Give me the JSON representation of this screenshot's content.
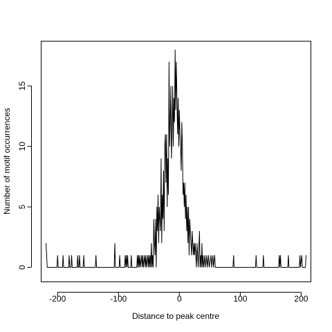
{
  "chart_data": {
    "type": "line",
    "title": "",
    "xlabel": "Distance to peak centre",
    "ylabel": "Number of motif occurrences",
    "xlim": [
      -227,
      216
    ],
    "ylim": [
      -1.2,
      18.7
    ],
    "xticks": [
      -200,
      -100,
      0,
      100,
      200
    ],
    "yticks": [
      0,
      5,
      10,
      15
    ],
    "grid": false,
    "legend": "none",
    "line_color": "#000000",
    "series": [
      {
        "points": [
          [
            -219,
            2
          ],
          [
            -217,
            0
          ],
          [
            -201,
            0
          ],
          [
            -200,
            1
          ],
          [
            -199,
            0
          ],
          [
            -192,
            0
          ],
          [
            -191,
            1
          ],
          [
            -190,
            0
          ],
          [
            -182,
            0
          ],
          [
            -181,
            1
          ],
          [
            -180,
            0
          ],
          [
            -178,
            0
          ],
          [
            -177,
            1
          ],
          [
            -176,
            0
          ],
          [
            -168,
            0
          ],
          [
            -167,
            1
          ],
          [
            -166,
            0
          ],
          [
            -165,
            0
          ],
          [
            -164,
            1
          ],
          [
            -163,
            0
          ],
          [
            -158,
            0
          ],
          [
            -157,
            1
          ],
          [
            -156,
            0
          ],
          [
            -138,
            0
          ],
          [
            -137,
            1
          ],
          [
            -136,
            0
          ],
          [
            -107,
            0
          ],
          [
            -106,
            2
          ],
          [
            -105,
            0
          ],
          [
            -99,
            0
          ],
          [
            -98,
            1
          ],
          [
            -97,
            0
          ],
          [
            -90,
            0
          ],
          [
            -89,
            1
          ],
          [
            -88,
            0
          ],
          [
            -87,
            1
          ],
          [
            -86,
            0
          ],
          [
            -85,
            1
          ],
          [
            -84,
            0
          ],
          [
            -80,
            0
          ],
          [
            -79,
            1
          ],
          [
            -78,
            0
          ],
          [
            -70,
            0
          ],
          [
            -69,
            1
          ],
          [
            -68,
            0
          ],
          [
            -67,
            1
          ],
          [
            -66,
            0
          ],
          [
            -65,
            1
          ],
          [
            -64,
            0
          ],
          [
            -62,
            1
          ],
          [
            -61,
            0
          ],
          [
            -60,
            1
          ],
          [
            -59,
            0
          ],
          [
            -57,
            1
          ],
          [
            -56,
            0
          ],
          [
            -55,
            1
          ],
          [
            -54,
            0
          ],
          [
            -52,
            1
          ],
          [
            -51,
            0
          ],
          [
            -50,
            1
          ],
          [
            -49,
            0
          ],
          [
            -48,
            1
          ],
          [
            -47,
            0
          ],
          [
            -46,
            2
          ],
          [
            -45,
            0
          ],
          [
            -44,
            1
          ],
          [
            -43,
            0
          ],
          [
            -42,
            4
          ],
          [
            -41,
            2
          ],
          [
            -40,
            1
          ],
          [
            -39,
            4
          ],
          [
            -38,
            0
          ],
          [
            -37,
            5
          ],
          [
            -36,
            3
          ],
          [
            -35,
            6
          ],
          [
            -34,
            2
          ],
          [
            -33,
            5
          ],
          [
            -32,
            4
          ],
          [
            -31,
            3
          ],
          [
            -30,
            9
          ],
          [
            -29,
            2
          ],
          [
            -28,
            6
          ],
          [
            -27,
            4
          ],
          [
            -26,
            8
          ],
          [
            -25,
            3
          ],
          [
            -24,
            10
          ],
          [
            -23,
            11
          ],
          [
            -22,
            7
          ],
          [
            -21,
            11
          ],
          [
            -20,
            5
          ],
          [
            -19,
            9
          ],
          [
            -18,
            6
          ],
          [
            -17,
            17
          ],
          [
            -16,
            10
          ],
          [
            -15,
            12
          ],
          [
            -14,
            15
          ],
          [
            -13,
            9
          ],
          [
            -12,
            11
          ],
          [
            -11,
            15
          ],
          [
            -10,
            10
          ],
          [
            -9,
            14
          ],
          [
            -8,
            12
          ],
          [
            -7,
            18
          ],
          [
            -6,
            13
          ],
          [
            -5,
            17
          ],
          [
            -4,
            14
          ],
          [
            -3,
            11
          ],
          [
            -2,
            14
          ],
          [
            -1,
            10
          ],
          [
            0,
            13
          ],
          [
            1,
            11
          ],
          [
            2,
            10
          ],
          [
            3,
            8
          ],
          [
            4,
            12
          ],
          [
            5,
            10
          ],
          [
            6,
            6
          ],
          [
            7,
            7
          ],
          [
            8,
            5
          ],
          [
            9,
            7
          ],
          [
            10,
            4
          ],
          [
            11,
            6
          ],
          [
            12,
            3
          ],
          [
            13,
            5
          ],
          [
            14,
            2
          ],
          [
            15,
            5
          ],
          [
            16,
            1
          ],
          [
            17,
            4
          ],
          [
            18,
            3
          ],
          [
            19,
            2
          ],
          [
            20,
            1
          ],
          [
            21,
            3
          ],
          [
            22,
            2
          ],
          [
            23,
            1
          ],
          [
            24,
            2
          ],
          [
            25,
            1
          ],
          [
            26,
            2
          ],
          [
            27,
            1
          ],
          [
            28,
            0
          ],
          [
            29,
            2
          ],
          [
            30,
            1
          ],
          [
            31,
            0
          ],
          [
            33,
            3
          ],
          [
            34,
            0
          ],
          [
            35,
            1
          ],
          [
            36,
            0
          ],
          [
            37,
            2
          ],
          [
            38,
            0
          ],
          [
            39,
            1
          ],
          [
            40,
            0
          ],
          [
            42,
            1
          ],
          [
            43,
            0
          ],
          [
            45,
            1
          ],
          [
            46,
            0
          ],
          [
            48,
            1
          ],
          [
            49,
            0
          ],
          [
            52,
            1
          ],
          [
            53,
            0
          ],
          [
            55,
            1
          ],
          [
            56,
            0
          ],
          [
            58,
            1
          ],
          [
            59,
            0
          ],
          [
            88,
            0
          ],
          [
            89,
            1
          ],
          [
            90,
            0
          ],
          [
            125,
            0
          ],
          [
            126,
            1
          ],
          [
            127,
            0
          ],
          [
            137,
            0
          ],
          [
            138,
            1
          ],
          [
            139,
            0
          ],
          [
            163,
            0
          ],
          [
            164,
            1
          ],
          [
            165,
            0
          ],
          [
            166,
            1
          ],
          [
            167,
            0
          ],
          [
            178,
            0
          ],
          [
            179,
            1
          ],
          [
            180,
            0
          ],
          [
            197,
            0
          ],
          [
            198,
            1
          ],
          [
            199,
            0
          ],
          [
            201,
            1
          ],
          [
            202,
            0
          ],
          [
            207,
            0
          ],
          [
            208,
            1
          ]
        ]
      }
    ]
  }
}
